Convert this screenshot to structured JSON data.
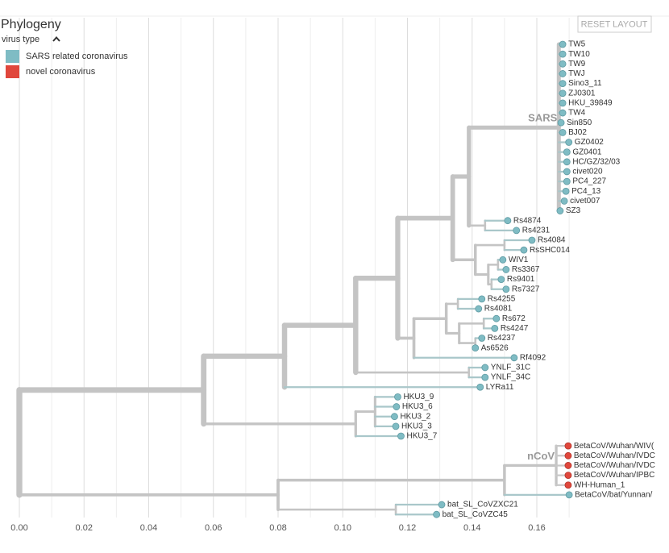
{
  "chart_data": {
    "type": "tree",
    "title": "Phylogeny",
    "legend": {
      "title": "virus type",
      "items": [
        {
          "name": "SARS related coronavirus",
          "color": "#7fbcc4"
        },
        {
          "name": "novel coronavirus",
          "color": "#e0473c"
        }
      ]
    },
    "xlim": [
      0,
      0.2
    ],
    "xticks": [
      {
        "value": 0,
        "label": "0.00"
      },
      {
        "value": 0.02,
        "label": "0.02"
      },
      {
        "value": 0.04,
        "label": "0.04"
      },
      {
        "value": 0.06,
        "label": "0.06"
      },
      {
        "value": 0.08,
        "label": "0.08"
      },
      {
        "value": 0.1,
        "label": "0.10"
      },
      {
        "value": 0.12,
        "label": "0.12"
      },
      {
        "value": 0.14,
        "label": "0.14"
      },
      {
        "value": 0.16,
        "label": "0.16"
      }
    ],
    "xminor": [
      0.01,
      0.03,
      0.05,
      0.07,
      0.09,
      0.11,
      0.13,
      0.15,
      0.17
    ],
    "grid": true,
    "tree": {
      "x": 0,
      "children": [
        {
          "x": 0.057,
          "children": [
            {
              "x": 0.082,
              "children": [
                {
                  "x": 0.104,
                  "children": [
                    {
                      "x": 0.117,
                      "children": [
                        {
                          "x": 0.134,
                          "children": [
                            {
                              "x": 0.139,
                              "children": [
                                {
                                  "x": 0.1668,
                                  "clade": "SARS",
                                  "children": [
                                    {
                                      "name": "TW5",
                                      "x": 0.168,
                                      "group": 0
                                    },
                                    {
                                      "name": "TW10",
                                      "x": 0.168,
                                      "group": 0
                                    },
                                    {
                                      "name": "TW9",
                                      "x": 0.168,
                                      "group": 0
                                    },
                                    {
                                      "name": "TWJ",
                                      "x": 0.168,
                                      "group": 0
                                    },
                                    {
                                      "name": "Sino3_11",
                                      "x": 0.168,
                                      "group": 0
                                    },
                                    {
                                      "name": "ZJ0301",
                                      "x": 0.168,
                                      "group": 0
                                    },
                                    {
                                      "name": "HKU_39849",
                                      "x": 0.168,
                                      "group": 0
                                    },
                                    {
                                      "name": "TW4",
                                      "x": 0.168,
                                      "group": 0
                                    },
                                    {
                                      "name": "Sin850",
                                      "x": 0.1675,
                                      "group": 0
                                    },
                                    {
                                      "name": "BJ02",
                                      "x": 0.168,
                                      "group": 0
                                    },
                                    {
                                      "name": "GZ0402",
                                      "x": 0.1699,
                                      "group": 0
                                    },
                                    {
                                      "name": "GZ0401",
                                      "x": 0.1693,
                                      "group": 0
                                    },
                                    {
                                      "name": "HC/GZ/32/03",
                                      "x": 0.1693,
                                      "group": 0
                                    },
                                    {
                                      "name": "civet020",
                                      "x": 0.1693,
                                      "group": 0
                                    },
                                    {
                                      "name": "PC4_227",
                                      "x": 0.1693,
                                      "group": 0
                                    },
                                    {
                                      "name": "PC4_13",
                                      "x": 0.169,
                                      "group": 0
                                    },
                                    {
                                      "name": "civet007",
                                      "x": 0.1685,
                                      "group": 0
                                    },
                                    {
                                      "name": "SZ3",
                                      "x": 0.1672,
                                      "group": 0
                                    }
                                  ]
                                },
                                {
                                  "x": 0.144,
                                  "children": [
                                    {
                                      "name": "Rs4874",
                                      "x": 0.151,
                                      "group": 0
                                    },
                                    {
                                      "name": "Rs4231",
                                      "x": 0.1537,
                                      "group": 0
                                    }
                                  ]
                                }
                              ]
                            },
                            {
                              "x": 0.141,
                              "children": [
                                {
                                  "x": 0.15,
                                  "children": [
                                    {
                                      "name": "Rs4084",
                                      "x": 0.1585,
                                      "group": 0
                                    },
                                    {
                                      "name": "RsSHC014",
                                      "x": 0.156,
                                      "group": 0
                                    }
                                  ]
                                },
                                {
                                  "x": 0.145,
                                  "children": [
                                    {
                                      "x": 0.148,
                                      "children": [
                                        {
                                          "name": "WIV1",
                                          "x": 0.1495,
                                          "group": 0
                                        },
                                        {
                                          "name": "Rs3367",
                                          "x": 0.1505,
                                          "group": 0
                                        }
                                      ]
                                    },
                                    {
                                      "x": 0.146,
                                      "children": [
                                        {
                                          "name": "Rs9401",
                                          "x": 0.149,
                                          "group": 0
                                        },
                                        {
                                          "name": "Rs7327",
                                          "x": 0.1505,
                                          "group": 0
                                        }
                                      ]
                                    }
                                  ]
                                }
                              ]
                            }
                          ]
                        },
                        {
                          "x": 0.122,
                          "children": [
                            {
                              "x": 0.132,
                              "children": [
                                {
                                  "x": 0.1356,
                                  "children": [
                                    {
                                      "name": "Rs4255",
                                      "x": 0.143,
                                      "group": 0
                                    },
                                    {
                                      "name": "Rs4081",
                                      "x": 0.142,
                                      "group": 0
                                    }
                                  ]
                                },
                                {
                                  "x": 0.136,
                                  "children": [
                                    {
                                      "x": 0.1436,
                                      "children": [
                                        {
                                          "name": "Rs672",
                                          "x": 0.1475,
                                          "group": 0
                                        },
                                        {
                                          "name": "Rs4247",
                                          "x": 0.147,
                                          "group": 0
                                        }
                                      ]
                                    },
                                    {
                                      "x": 0.141,
                                      "children": [
                                        {
                                          "name": "Rs4237",
                                          "x": 0.143,
                                          "group": 0
                                        },
                                        {
                                          "name": "As6526",
                                          "x": 0.141,
                                          "group": 0
                                        }
                                      ]
                                    }
                                  ]
                                }
                              ]
                            },
                            {
                              "name": "Rf4092",
                              "x": 0.153,
                              "group": 0
                            }
                          ]
                        }
                      ]
                    },
                    {
                      "x": 0.139,
                      "children": [
                        {
                          "name": "YNLF_31C",
                          "x": 0.144,
                          "group": 0
                        },
                        {
                          "name": "YNLF_34C",
                          "x": 0.144,
                          "group": 0
                        }
                      ]
                    }
                  ]
                },
                {
                  "name": "LYRa11",
                  "x": 0.1425,
                  "group": 0
                }
              ]
            },
            {
              "x": 0.104,
              "children": [
                {
                  "x": 0.11,
                  "children": [
                    {
                      "name": "HKU3_9",
                      "x": 0.117,
                      "group": 0
                    },
                    {
                      "name": "HKU3_6",
                      "x": 0.1166,
                      "group": 0
                    },
                    {
                      "name": "HKU3_2",
                      "x": 0.116,
                      "group": 0
                    },
                    {
                      "name": "HKU3_3",
                      "x": 0.1164,
                      "group": 0
                    }
                  ]
                },
                {
                  "name": "HKU3_7",
                  "x": 0.118,
                  "group": 0
                }
              ]
            }
          ]
        },
        {
          "x": 0.08,
          "children": [
            {
              "x": 0.15,
              "children": [
                {
                  "x": 0.166,
                  "clade": "nCoV",
                  "children": [
                    {
                      "name": "BetaCoV/Wuhan/WIV(",
                      "x": 0.1697,
                      "group": 1
                    },
                    {
                      "name": "BetaCoV/Wuhan/IVDC",
                      "x": 0.1697,
                      "group": 1
                    },
                    {
                      "name": "BetaCoV/Wuhan/IVDC",
                      "x": 0.1697,
                      "group": 1
                    },
                    {
                      "name": "BetaCoV/Wuhan/IPBC",
                      "x": 0.1697,
                      "group": 1
                    },
                    {
                      "name": "WH-Human_1",
                      "x": 0.1697,
                      "group": 1
                    }
                  ]
                },
                {
                  "name": "BetaCoV/bat/Yunnan/",
                  "x": 0.17,
                  "group": 0
                }
              ]
            },
            {
              "x": 0.1164,
              "children": [
                {
                  "name": "bat_SL_CoVZXC21",
                  "x": 0.1306,
                  "group": 0
                },
                {
                  "name": "bat_SL_CoVZC45",
                  "x": 0.129,
                  "group": 0
                }
              ]
            }
          ]
        }
      ]
    }
  },
  "controls": {
    "reset": "RESET LAYOUT"
  }
}
